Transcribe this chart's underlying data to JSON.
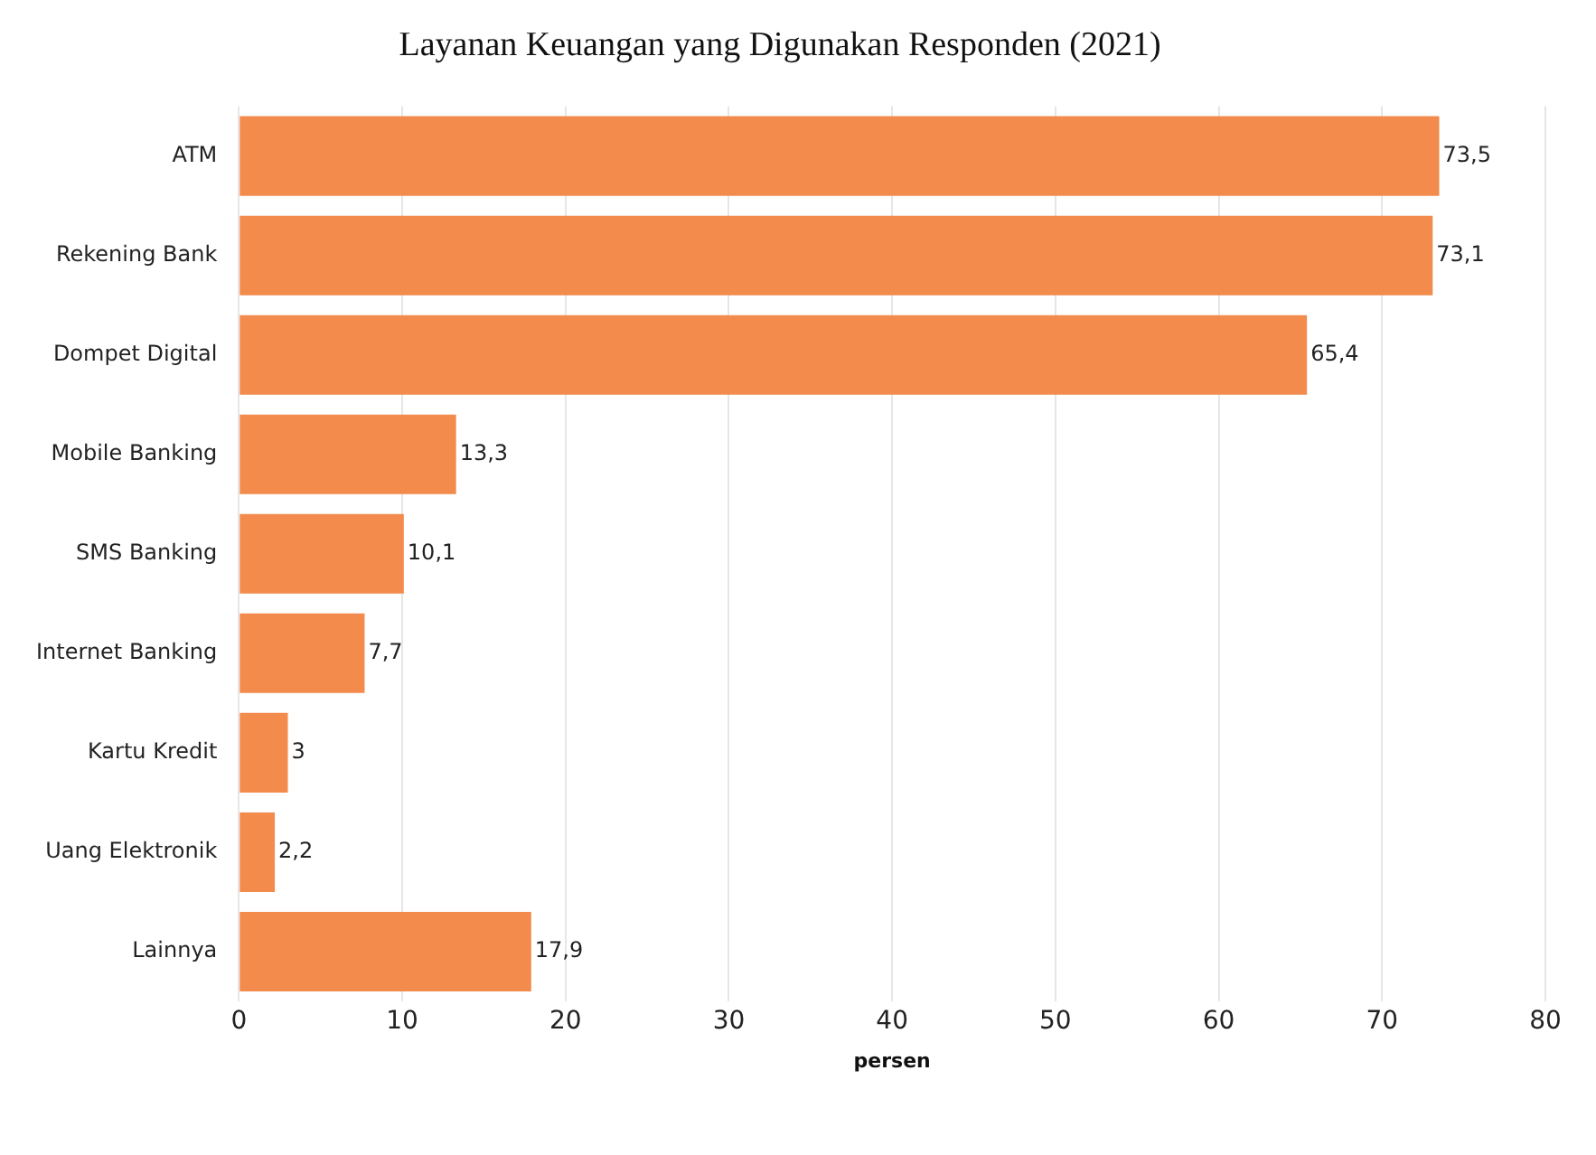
{
  "chart_data": {
    "type": "bar",
    "orientation": "horizontal",
    "title": "Layanan Keuangan yang Digunakan Responden (2021)",
    "xlabel": "persen",
    "categories": [
      "ATM",
      "Rekening Bank",
      "Dompet Digital",
      "Mobile Banking",
      "SMS Banking",
      "Internet Banking",
      "Kartu Kredit",
      "Uang Elektronik",
      "Lainnya"
    ],
    "values": [
      73.5,
      73.1,
      65.4,
      13.3,
      10.1,
      7.7,
      3,
      2.2,
      17.9
    ],
    "value_labels": [
      "73,5",
      "73,1",
      "65,4",
      "13,3",
      "10,1",
      "7,7",
      "3",
      "2,2",
      "17,9"
    ],
    "color": "#f28b4c",
    "xlim": [
      0,
      80
    ],
    "xticks": [
      0,
      10,
      20,
      30,
      40,
      50,
      60,
      70,
      80
    ],
    "grid": "x",
    "legend": false
  }
}
